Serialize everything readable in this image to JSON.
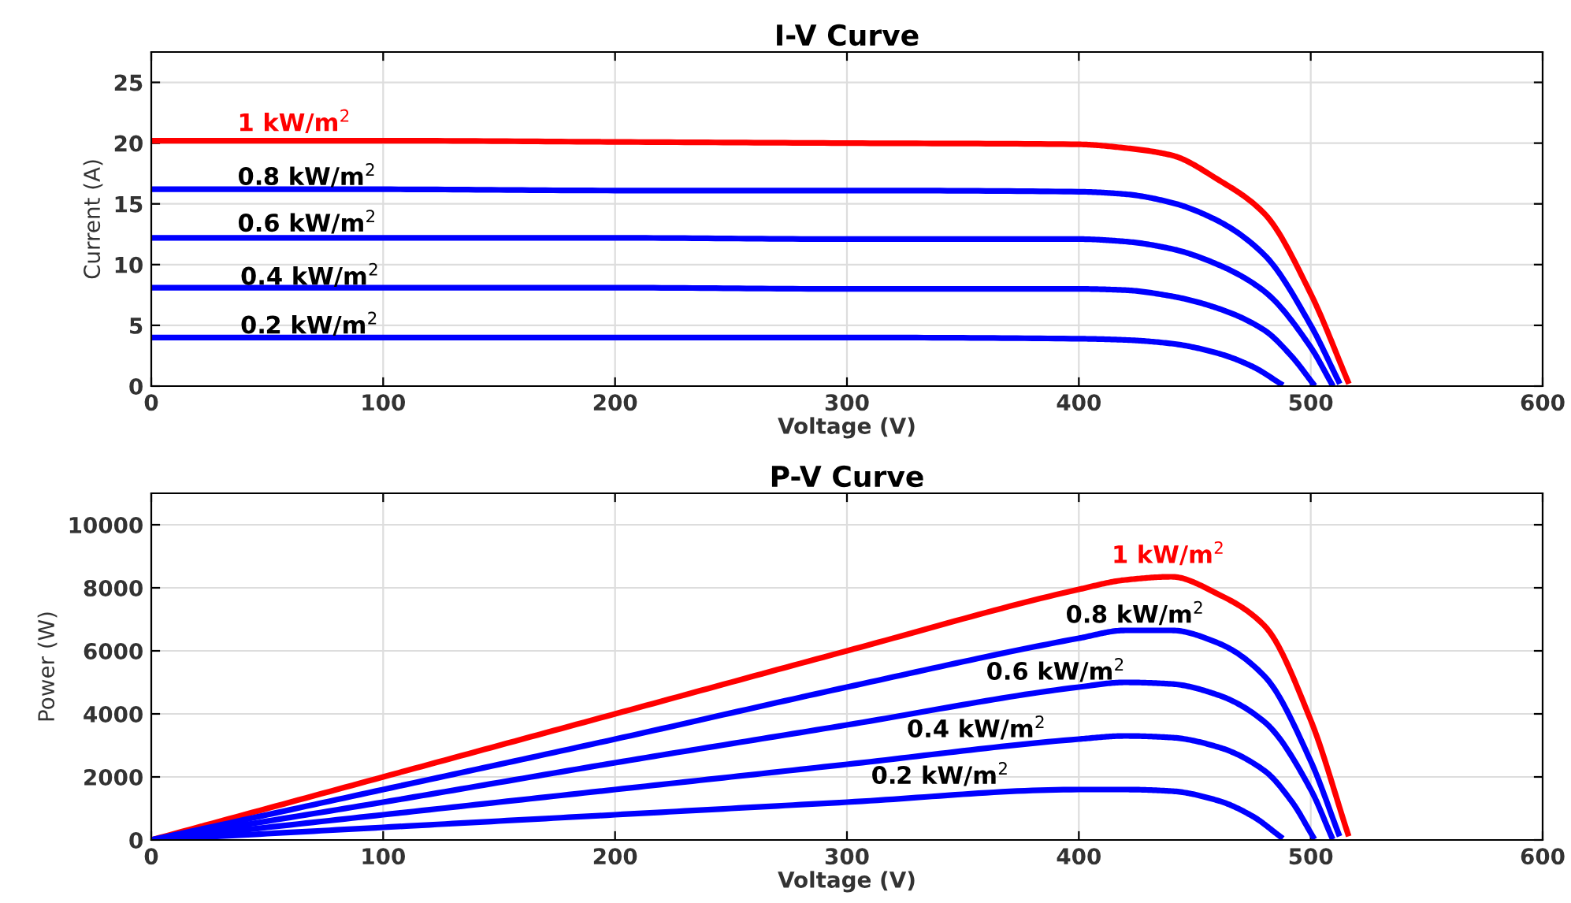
{
  "chart_data": [
    {
      "type": "line",
      "title": "I-V Curve",
      "xlabel": "Voltage (V)",
      "ylabel": "Current (A)",
      "xlim": [
        0,
        600
      ],
      "xticks": [
        0,
        100,
        200,
        300,
        400,
        500,
        600
      ],
      "ylim": [
        0,
        27.5
      ],
      "yticks": [
        0,
        5,
        10,
        15,
        20,
        25
      ],
      "grid": true,
      "line_style": "solid",
      "marker": "none",
      "series": [
        {
          "name": "1 kW/m$^{2}$",
          "color": "#ff0000",
          "x": [
            0,
            100,
            200,
            300,
            400,
            420,
            440,
            460,
            480,
            500,
            516
          ],
          "values": [
            20.2,
            20.2,
            20.1,
            20.0,
            19.9,
            19.6,
            19.0,
            17.0,
            14.2,
            7.6,
            0.4
          ]
        },
        {
          "name": "0.8 kW/m$^{2}$",
          "color": "#0000ff",
          "x": [
            0,
            100,
            200,
            300,
            400,
            420,
            440,
            460,
            480,
            500,
            512
          ],
          "values": [
            16.2,
            16.2,
            16.1,
            16.1,
            16.0,
            15.8,
            15.1,
            13.6,
            10.8,
            5.0,
            0.4
          ]
        },
        {
          "name": "0.6 kW/m$^{2}$",
          "color": "#0000ff",
          "x": [
            0,
            100,
            200,
            300,
            400,
            420,
            440,
            460,
            480,
            500,
            509
          ],
          "values": [
            12.2,
            12.2,
            12.2,
            12.1,
            12.1,
            11.9,
            11.3,
            10.0,
            7.8,
            3.2,
            0.2
          ]
        },
        {
          "name": "0.4 kW/m$^{2}$",
          "color": "#0000ff",
          "x": [
            0,
            100,
            200,
            300,
            400,
            420,
            440,
            460,
            480,
            492,
            501
          ],
          "values": [
            8.1,
            8.1,
            8.1,
            8.0,
            8.0,
            7.9,
            7.4,
            6.4,
            4.6,
            2.4,
            0.2
          ]
        },
        {
          "name": "0.2 kW/m$^{2}$",
          "color": "#0000ff",
          "x": [
            0,
            100,
            200,
            300,
            400,
            420,
            440,
            460,
            475,
            487
          ],
          "values": [
            4.0,
            4.0,
            4.0,
            4.0,
            3.9,
            3.8,
            3.5,
            2.7,
            1.6,
            0.2
          ]
        }
      ]
    },
    {
      "type": "line",
      "title": "P-V Curve",
      "xlabel": "Voltage (V)",
      "ylabel": "Power (W)",
      "xlim": [
        0,
        600
      ],
      "xticks": [
        0,
        100,
        200,
        300,
        400,
        500,
        600
      ],
      "ylim": [
        0,
        11000
      ],
      "yticks": [
        0,
        2000,
        4000,
        6000,
        8000,
        10000
      ],
      "grid": true,
      "line_style": "solid",
      "marker": "none",
      "series": [
        {
          "name": "1 kW/m$^{2}$",
          "color": "#ff0000",
          "x": [
            0,
            100,
            200,
            300,
            400,
            420,
            440,
            460,
            480,
            500,
            516
          ],
          "values": [
            0,
            2000,
            4000,
            6000,
            7950,
            8250,
            8350,
            7800,
            6800,
            3800,
            200
          ]
        },
        {
          "name": "0.8 kW/m$^{2}$",
          "color": "#0000ff",
          "x": [
            0,
            100,
            200,
            300,
            400,
            420,
            440,
            460,
            480,
            500,
            512
          ],
          "values": [
            0,
            1600,
            3200,
            4850,
            6400,
            6650,
            6650,
            6250,
            5200,
            2500,
            200
          ]
        },
        {
          "name": "0.6 kW/m$^{2}$",
          "color": "#0000ff",
          "x": [
            0,
            100,
            200,
            300,
            400,
            420,
            440,
            460,
            480,
            500,
            509
          ],
          "values": [
            0,
            1200,
            2450,
            3650,
            4850,
            5000,
            4950,
            4600,
            3750,
            1600,
            100
          ]
        },
        {
          "name": "0.4 kW/m$^{2}$",
          "color": "#0000ff",
          "x": [
            0,
            100,
            200,
            300,
            400,
            420,
            440,
            460,
            480,
            492,
            501
          ],
          "values": [
            0,
            800,
            1600,
            2400,
            3200,
            3300,
            3250,
            2950,
            2200,
            1200,
            100
          ]
        },
        {
          "name": "0.2 kW/m$^{2}$",
          "color": "#0000ff",
          "x": [
            0,
            100,
            200,
            300,
            400,
            420,
            440,
            460,
            475,
            487
          ],
          "values": [
            0,
            400,
            800,
            1200,
            1600,
            1600,
            1550,
            1250,
            750,
            100
          ]
        }
      ]
    }
  ]
}
